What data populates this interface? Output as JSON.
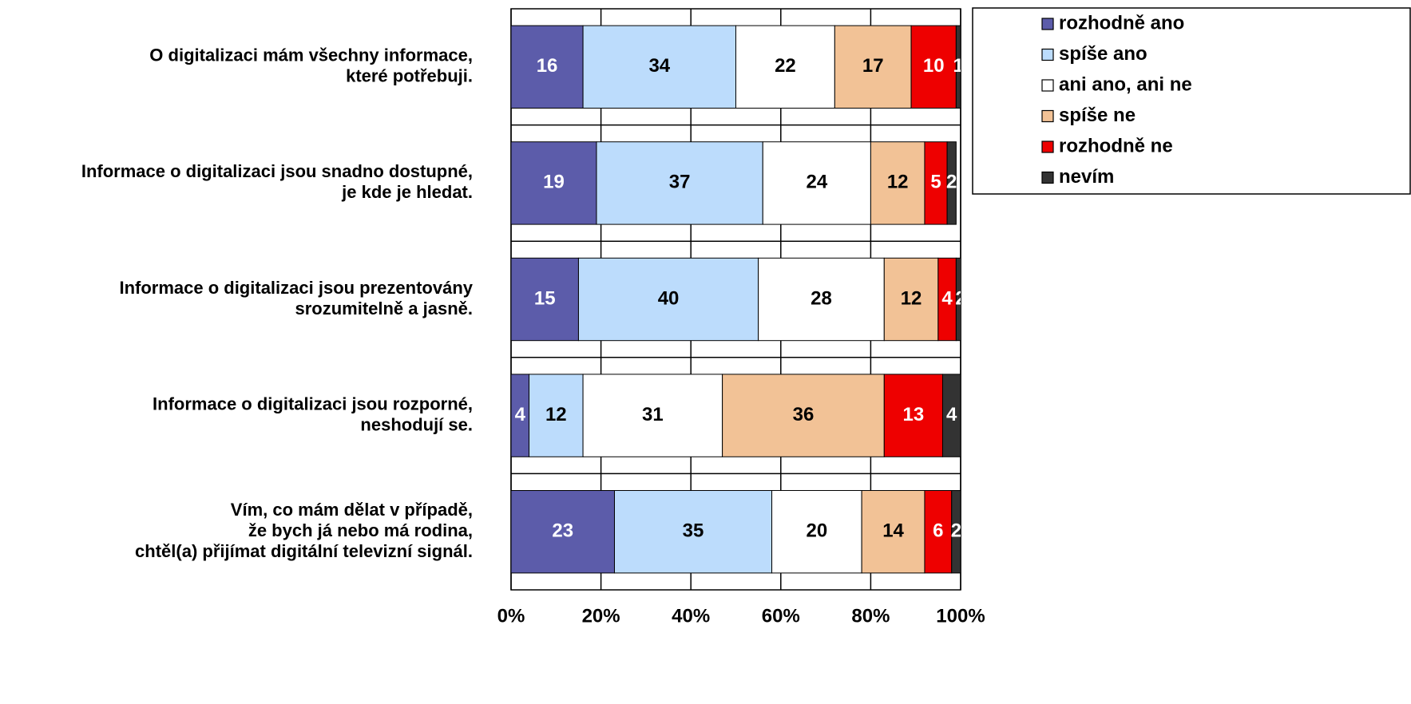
{
  "chart_data": {
    "type": "stacked_barh",
    "categories": [
      [
        "O digitalizaci mám všechny informace,",
        "které potřebuji."
      ],
      [
        "Informace o digitalizaci jsou snadno dostupné,",
        "je kde je hledat."
      ],
      [
        "Informace o digitalizaci jsou prezentovány",
        "srozumitelně a jasně."
      ],
      [
        "Informace o digitalizaci jsou rozporné,",
        "neshodují se."
      ],
      [
        "Vím, co mám dělat v případě,",
        "že bych já nebo má rodina,",
        "chtěl(a) přijímat digitální televizní signál."
      ]
    ],
    "series": [
      {
        "name": "rozhodně ano",
        "color": "#5c5caa",
        "values": [
          16,
          19,
          15,
          4,
          23
        ]
      },
      {
        "name": "spíše ano",
        "color": "#bcdcfc",
        "values": [
          34,
          37,
          40,
          12,
          35
        ]
      },
      {
        "name": "ani ano, ani ne",
        "color": "#ffffff",
        "values": [
          22,
          24,
          28,
          31,
          20
        ]
      },
      {
        "name": "spíše ne",
        "color": "#f2c296",
        "values": [
          17,
          12,
          12,
          36,
          14
        ]
      },
      {
        "name": "rozhodně ne",
        "color": "#ee0000",
        "values": [
          10,
          5,
          4,
          13,
          6
        ]
      },
      {
        "name": "nevím",
        "color": "#333333",
        "values": [
          1,
          2,
          2,
          4,
          2
        ]
      }
    ],
    "xlim": [
      0,
      100
    ],
    "xticks": [
      {
        "value": 0,
        "label": "0%"
      },
      {
        "value": 20,
        "label": "20%"
      },
      {
        "value": 40,
        "label": "40%"
      },
      {
        "value": 60,
        "label": "60%"
      },
      {
        "value": 80,
        "label": "80%"
      },
      {
        "value": 100,
        "label": "100%"
      }
    ],
    "grid": true,
    "legend": "top-right"
  }
}
